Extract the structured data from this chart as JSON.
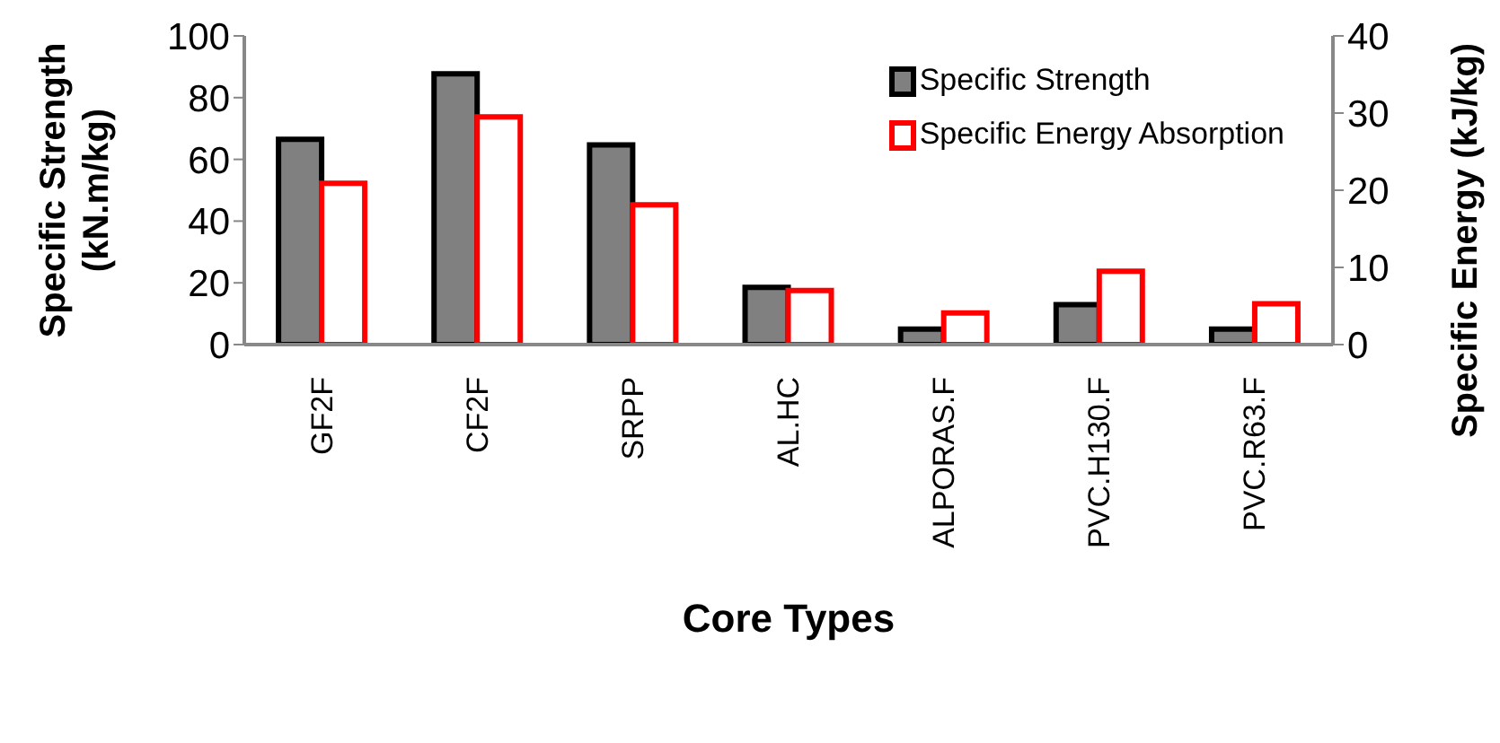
{
  "chart_data": {
    "type": "bar",
    "xlabel": "Core Types",
    "ylabel": "Specific Strength\n(kN.m/kg)",
    "y2label": "Specific Energy (kJ/kg)",
    "categories": [
      "GF2F",
      "CF2F",
      "SRPP",
      "AL.HC",
      "ALPORAS.F",
      "PVC.H130.F",
      "PVC.R63.F"
    ],
    "series": [
      {
        "name": "Specific Strength",
        "color": "#808080",
        "values": [
          66.5,
          87.7,
          64.7,
          18.5,
          5.0,
          12.9,
          5.0
        ]
      },
      {
        "name": "Specific Energy Absorption",
        "color": "#ff0000",
        "axis": "y2",
        "values": [
          20.9,
          29.5,
          18.1,
          7.0,
          4.1,
          9.5,
          5.3
        ]
      }
    ],
    "ylim": [
      0,
      100
    ],
    "yticks": [
      0,
      20,
      40,
      60,
      80,
      100
    ],
    "y2lim": [
      0,
      40
    ],
    "y2ticks": [
      0,
      10,
      20,
      30,
      40
    ],
    "legend": "top right"
  }
}
